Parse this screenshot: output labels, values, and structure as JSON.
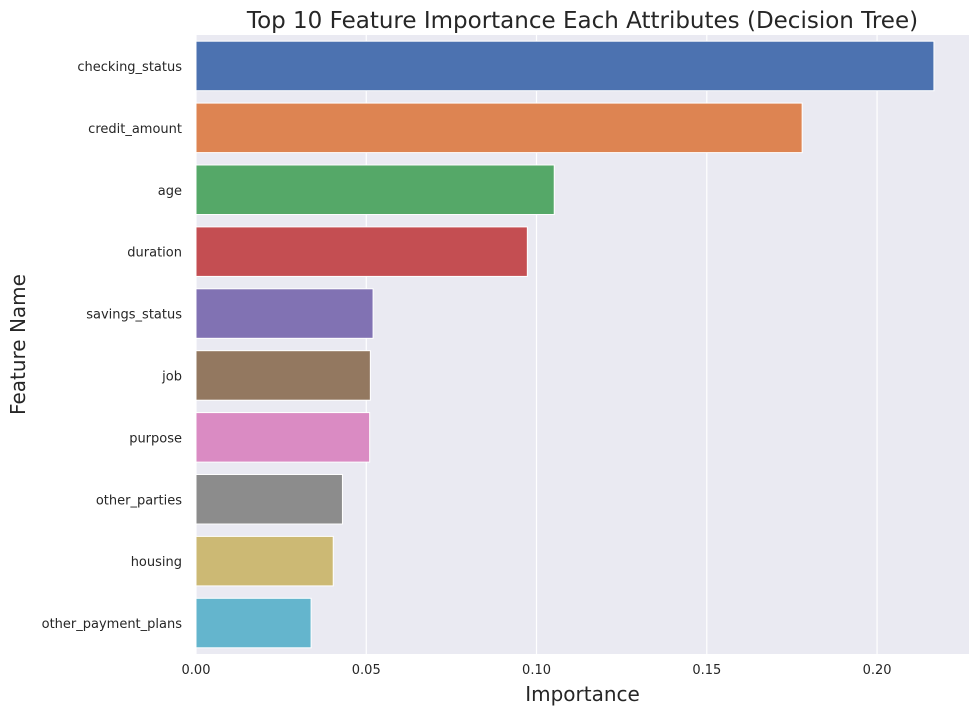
{
  "chart_data": {
    "type": "bar",
    "orientation": "horizontal",
    "title": "Top 10 Feature Importance Each Attributes (Decision Tree)",
    "xlabel": "Importance",
    "ylabel": "Feature Name",
    "xlim": [
      0,
      0.227
    ],
    "xticks": [
      "0.00",
      "0.05",
      "0.10",
      "0.15",
      "0.20"
    ],
    "xtick_values": [
      0,
      0.05,
      0.1,
      0.15,
      0.2
    ],
    "grid": true,
    "categories": [
      "checking_status",
      "credit_amount",
      "age",
      "duration",
      "savings_status",
      "job",
      "purpose",
      "other_parties",
      "housing",
      "other_payment_plans"
    ],
    "values": [
      0.2167,
      0.178,
      0.1052,
      0.0973,
      0.052,
      0.0512,
      0.051,
      0.043,
      0.0403,
      0.0338
    ],
    "colors": [
      "#4c72b0",
      "#dd8452",
      "#55a868",
      "#c44e52",
      "#8172b3",
      "#937860",
      "#da8bc3",
      "#8c8c8c",
      "#ccb974",
      "#64b5cd"
    ],
    "background": "#eaeaf2",
    "grid_color": "#ffffff"
  }
}
